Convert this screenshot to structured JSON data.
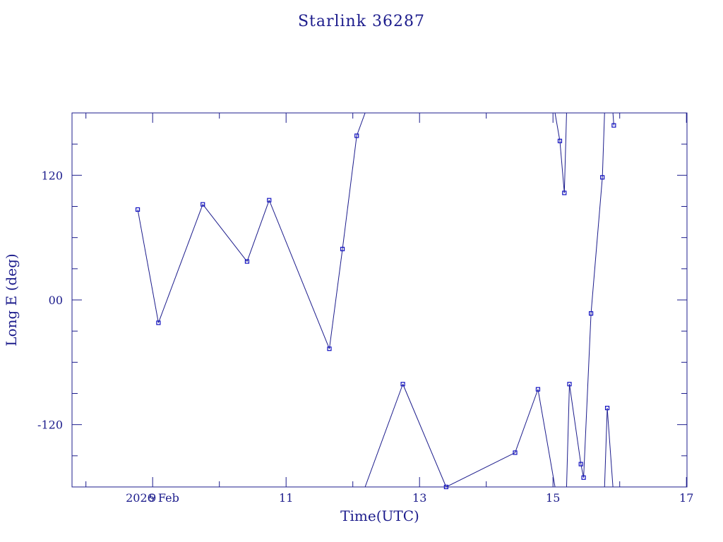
{
  "chart_data": {
    "type": "line",
    "title": "Starlink 36287",
    "xlabel": "Time(UTC)",
    "ylabel": "Long E (deg)",
    "x_date_prefix": "2026 Feb",
    "x_ticks": [
      "9",
      "11",
      "13",
      "15",
      "17"
    ],
    "y_ticks": [
      "-120",
      "00",
      "120"
    ],
    "xlim": [
      "2026-02-07T19:00",
      "2026-02-17T00:12"
    ],
    "ylim": [
      -180,
      180
    ],
    "grid": false,
    "colors": {
      "line": "#1c1c8c",
      "marker": "#1010c0",
      "text": "#1c1c8c"
    },
    "series": [
      {
        "points": [
          {
            "t": "2026-02-08T18:38",
            "lon": 87
          },
          {
            "t": "2026-02-09T02:05",
            "lon": -22
          },
          {
            "t": "2026-02-09T18:02",
            "lon": 92
          },
          {
            "t": "2026-02-10T09:58",
            "lon": 37
          },
          {
            "t": "2026-02-10T17:55",
            "lon": 96
          },
          {
            "t": "2026-02-11T15:34",
            "lon": -47
          },
          {
            "t": "2026-02-11T20:17",
            "lon": 49
          },
          {
            "t": "2026-02-12T01:24",
            "lon": 158
          },
          {
            "t": "2026-02-12T18:00",
            "lon": -81
          },
          {
            "t": "2026-02-13T09:34",
            "lon": -180
          },
          {
            "t": "2026-02-14T10:22",
            "lon": -147
          },
          {
            "t": "2026-02-14T18:36",
            "lon": -86
          },
          {
            "t": "2026-02-15T02:29",
            "lon": 153
          },
          {
            "t": "2026-02-15T04:05",
            "lon": 103
          },
          {
            "t": "2026-02-15T05:55",
            "lon": -81
          },
          {
            "t": "2026-02-15T10:02",
            "lon": -158
          },
          {
            "t": "2026-02-15T11:01",
            "lon": -171
          },
          {
            "t": "2026-02-15T13:41",
            "lon": -13
          },
          {
            "t": "2026-02-15T17:46",
            "lon": 118
          },
          {
            "t": "2026-02-15T19:31",
            "lon": -104
          },
          {
            "t": "2026-02-15T21:53",
            "lon": 168
          }
        ]
      }
    ]
  }
}
